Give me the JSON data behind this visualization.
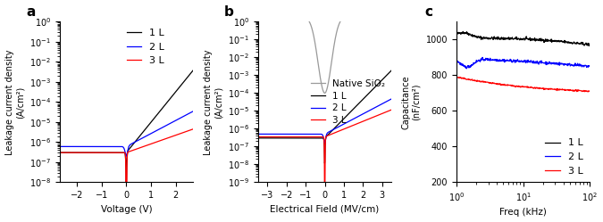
{
  "panel_a": {
    "label": "a",
    "xlabel": "Voltage (V)",
    "ylabel": "Leakage current density\n(A/cm²)",
    "xlim": [
      -2.7,
      2.7
    ],
    "ylim": [
      1e-08,
      1.0
    ],
    "xticks": [
      -2,
      -1,
      0,
      1,
      2
    ],
    "legend": [
      "1 L",
      "2 L",
      "3 L"
    ],
    "colors": [
      "black",
      "blue",
      "red"
    ]
  },
  "panel_b": {
    "label": "b",
    "xlabel": "Electrical Field (MV/cm)",
    "ylabel": "Leakage current density\n(A/cm²)",
    "xlim": [
      -3.5,
      3.5
    ],
    "ylim": [
      1e-09,
      1.0
    ],
    "xticks": [
      -3,
      -2,
      -1,
      0,
      1,
      2,
      3
    ],
    "legend": [
      "Native SiO₂",
      "1 L",
      "2 L",
      "3 L"
    ],
    "colors": [
      "#999999",
      "black",
      "blue",
      "red"
    ]
  },
  "panel_c": {
    "label": "c",
    "xlabel": "Freq (kHz)",
    "ylabel": "Capacitance\n(nF/cm²)",
    "xlim": [
      1,
      100
    ],
    "ylim": [
      200,
      1100
    ],
    "yticks": [
      200,
      400,
      600,
      800,
      1000
    ],
    "legend": [
      "1 L",
      "2 L",
      "3 L"
    ],
    "colors": [
      "black",
      "blue",
      "red"
    ]
  },
  "background_color": "white",
  "tick_fontsize": 7,
  "label_fontsize": 7.5,
  "legend_fontsize": 8
}
